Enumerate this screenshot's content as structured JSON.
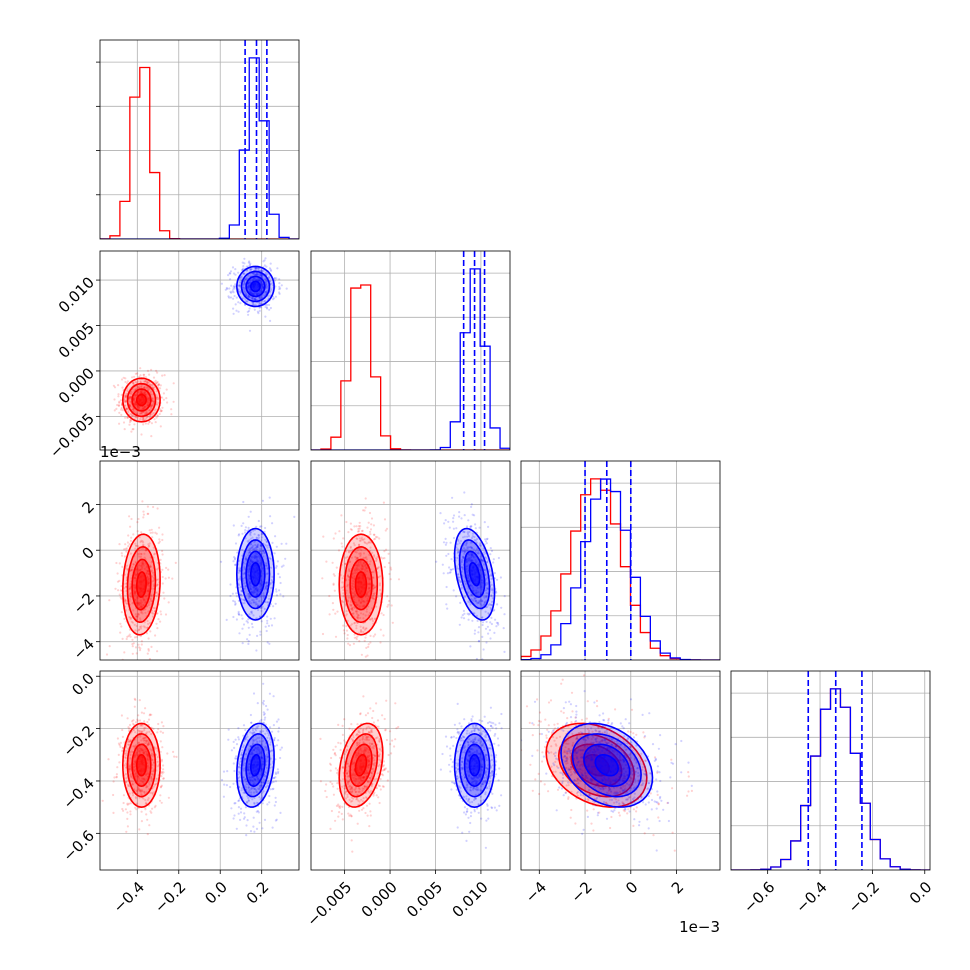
{
  "chart_data": {
    "type": "corner",
    "grid": true,
    "params": [
      {
        "range": [
          -0.58,
          0.38
        ],
        "ticks": [
          -0.4,
          -0.2,
          0.0,
          0.2
        ],
        "tick_labels": [
          "−0.4",
          "−0.2",
          "0.0",
          "0.2"
        ],
        "offset_text": ""
      },
      {
        "range": [
          -0.0087,
          0.0132
        ],
        "ticks": [
          -0.005,
          0.0,
          0.005,
          0.01
        ],
        "tick_labels": [
          "−0.005",
          "0.000",
          "0.005",
          "0.010"
        ],
        "offset_text": ""
      },
      {
        "range": [
          -4.8,
          3.9
        ],
        "ticks": [
          -4,
          -2,
          0,
          2
        ],
        "tick_labels": [
          "−4",
          "−2",
          "0",
          "2"
        ],
        "offset_text": "1e−3"
      },
      {
        "range": [
          -0.74,
          0.02
        ],
        "ticks": [
          -0.6,
          -0.4,
          -0.2,
          0.0
        ],
        "tick_labels": [
          "−0.6",
          "−0.4",
          "−0.2",
          "0.0"
        ],
        "offset_text": ""
      }
    ],
    "series": [
      {
        "color": "#ff0000",
        "mean": [
          -0.38,
          -0.0032,
          -1.5,
          -0.34
        ],
        "std": [
          0.045,
          0.0012,
          1.1,
          0.08
        ],
        "corr": {
          "0-1": 0.0,
          "0-2": 0.1,
          "0-3": 0.0,
          "1-2": 0.0,
          "1-3": 0.3,
          "2-3": -0.3
        }
      },
      {
        "color": "#0000ff",
        "mean": [
          0.17,
          0.0093,
          -1.05,
          -0.34
        ],
        "std": [
          0.045,
          0.0011,
          1.0,
          0.08
        ],
        "corr": {
          "0-1": 0.0,
          "0-2": 0.0,
          "0-3": 0.2,
          "1-2": -0.4,
          "1-3": 0.0,
          "2-3": -0.3
        }
      }
    ],
    "quantiles": {
      "color": "#0000ff",
      "values": [
        [
          0.12,
          0.175,
          0.225
        ],
        [
          0.0081,
          0.0093,
          0.0104
        ],
        [
          -2.0,
          -1.05,
          0.0
        ],
        [
          -0.445,
          -0.34,
          -0.24
        ]
      ]
    }
  }
}
